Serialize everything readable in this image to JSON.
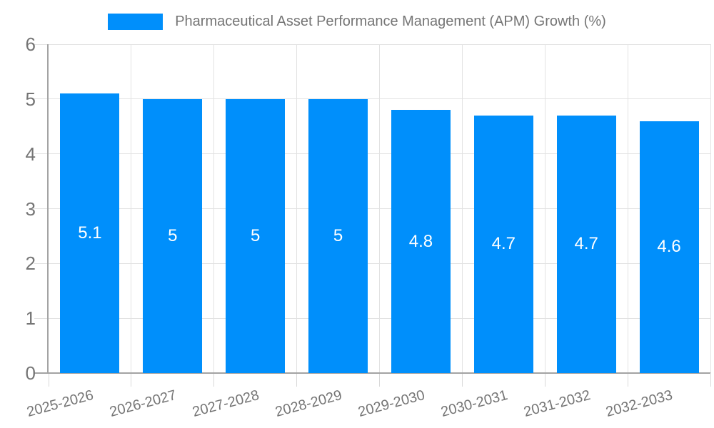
{
  "chart_data": {
    "type": "bar",
    "legend": {
      "label": "Pharmaceutical Asset Performance Management (APM) Growth (%)",
      "position": "top",
      "marker": "rect"
    },
    "categories": [
      "2025-2026",
      "2026-2027",
      "2027-2028",
      "2028-2029",
      "2029-2030",
      "2030-2031",
      "2031-2032",
      "2032-2033"
    ],
    "series": [
      {
        "name": "Pharmaceutical Asset Performance Management (APM) Growth (%)",
        "values": [
          5.1,
          5,
          5,
          5,
          4.8,
          4.7,
          4.7,
          4.6
        ],
        "value_labels": [
          "5.1",
          "5",
          "5",
          "5",
          "4.8",
          "4.7",
          "4.7",
          "4.6"
        ]
      }
    ],
    "xlabel": "",
    "ylabel": "",
    "ylim": [
      0,
      6
    ],
    "yticks": [
      0,
      1,
      2,
      3,
      4,
      5,
      6
    ],
    "ytick_labels": [
      "0",
      "1",
      "2",
      "3",
      "4",
      "5",
      "6"
    ],
    "grid": true,
    "x_label_rotation_deg": -15,
    "value_label_position": "center-inside",
    "colors": {
      "bar": "#008FFB",
      "text": "#757575",
      "value_label": "#FFFFFF",
      "gridline": "#E2E2E2",
      "axis_line": "#A3A3A3",
      "tick": "#D9D9D9",
      "background": "#FFFFFF"
    }
  }
}
